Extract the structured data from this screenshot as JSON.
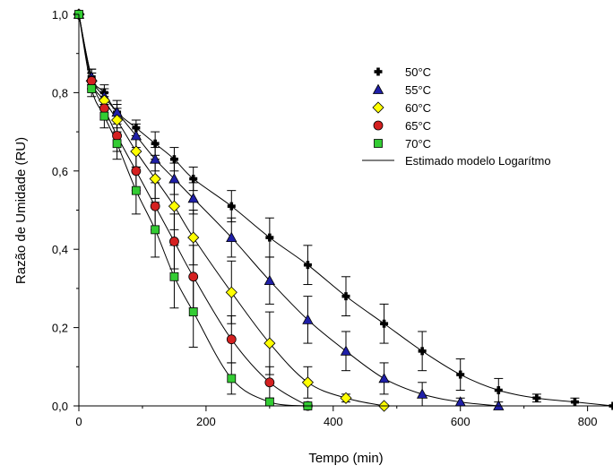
{
  "chart_data": {
    "type": "scatter",
    "xlabel": "Tempo (min)",
    "ylabel": "Razão de Umidade (RU)",
    "xlim": [
      0,
      840
    ],
    "ylim": [
      0,
      1.0
    ],
    "x_ticks": [
      "0",
      "200",
      "400",
      "600",
      "800"
    ],
    "y_ticks": [
      "0,0",
      "0,2",
      "0,4",
      "0,6",
      "0,8",
      "1,0"
    ],
    "grid": false,
    "legend_position": "top-right",
    "fit_label": "Estimado modelo Logarítmo",
    "series": [
      {
        "name": "50°C",
        "marker": "cross",
        "color": "#000000",
        "x": [
          0,
          20,
          40,
          60,
          90,
          120,
          150,
          180,
          240,
          300,
          360,
          420,
          480,
          540,
          600,
          660,
          720,
          780,
          840
        ],
        "y": [
          1.0,
          0.84,
          0.8,
          0.75,
          0.71,
          0.67,
          0.63,
          0.58,
          0.51,
          0.43,
          0.36,
          0.28,
          0.21,
          0.14,
          0.08,
          0.04,
          0.02,
          0.01,
          0.0
        ],
        "err": [
          0,
          0.02,
          0.02,
          0.02,
          0.02,
          0.03,
          0.03,
          0.03,
          0.04,
          0.05,
          0.05,
          0.05,
          0.05,
          0.05,
          0.04,
          0.03,
          0.01,
          0.01,
          0
        ]
      },
      {
        "name": "55°C",
        "marker": "triangle",
        "color": "#1f1fa8",
        "x": [
          0,
          20,
          40,
          60,
          90,
          120,
          150,
          180,
          240,
          300,
          360,
          420,
          480,
          540,
          600,
          660
        ],
        "y": [
          1.0,
          0.84,
          0.79,
          0.75,
          0.69,
          0.63,
          0.58,
          0.53,
          0.43,
          0.32,
          0.22,
          0.14,
          0.07,
          0.03,
          0.01,
          0.0
        ],
        "err": [
          0,
          0.02,
          0.02,
          0.03,
          0.03,
          0.03,
          0.04,
          0.04,
          0.05,
          0.06,
          0.06,
          0.05,
          0.04,
          0.03,
          0.01,
          0
        ]
      },
      {
        "name": "60°C",
        "marker": "diamond",
        "color": "#ffff00",
        "x": [
          0,
          20,
          40,
          60,
          90,
          120,
          150,
          180,
          240,
          300,
          360,
          420,
          480
        ],
        "y": [
          1.0,
          0.83,
          0.78,
          0.73,
          0.65,
          0.58,
          0.51,
          0.43,
          0.29,
          0.16,
          0.06,
          0.02,
          0.0
        ],
        "err": [
          0,
          0.02,
          0.02,
          0.03,
          0.04,
          0.05,
          0.06,
          0.07,
          0.08,
          0.08,
          0.04,
          0.01,
          0
        ]
      },
      {
        "name": "65°C",
        "marker": "circle",
        "color": "#d42020",
        "x": [
          0,
          20,
          40,
          60,
          90,
          120,
          150,
          180,
          240,
          300,
          360
        ],
        "y": [
          1.0,
          0.83,
          0.76,
          0.69,
          0.6,
          0.51,
          0.42,
          0.33,
          0.17,
          0.06,
          0.0
        ],
        "err": [
          0,
          0.02,
          0.03,
          0.04,
          0.05,
          0.06,
          0.07,
          0.08,
          0.06,
          0.04,
          0
        ]
      },
      {
        "name": "70°C",
        "marker": "square",
        "color": "#33cc33",
        "x": [
          0,
          20,
          40,
          60,
          90,
          120,
          150,
          180,
          240,
          300,
          360
        ],
        "y": [
          1.0,
          0.81,
          0.74,
          0.67,
          0.55,
          0.45,
          0.33,
          0.24,
          0.07,
          0.01,
          0.0
        ],
        "err": [
          0,
          0.02,
          0.03,
          0.04,
          0.06,
          0.07,
          0.08,
          0.09,
          0.04,
          0.01,
          0
        ]
      }
    ]
  }
}
